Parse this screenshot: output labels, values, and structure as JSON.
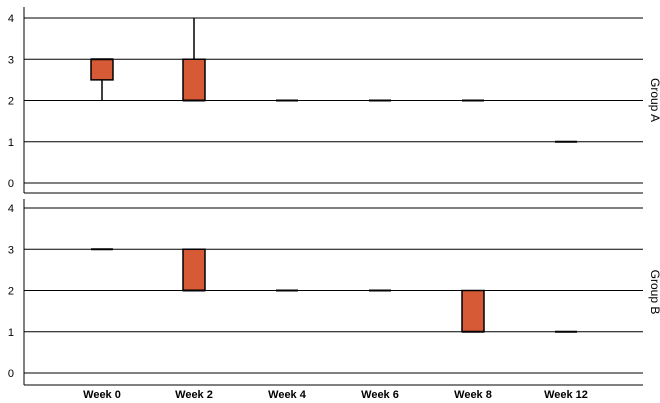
{
  "chart_data": {
    "type": "box",
    "categories": [
      "Week 0",
      "Week 2",
      "Week 4",
      "Week 6",
      "Week 8",
      "Week 12"
    ],
    "ylim": [
      0,
      4
    ],
    "yticks": [
      0,
      1,
      2,
      3,
      4
    ],
    "grid": true,
    "colors": {
      "box": "#d65a36",
      "outline": "#000000",
      "grid": "#000000"
    },
    "panels": [
      {
        "label": "Group A",
        "boxes": [
          {
            "min": 2,
            "q1": 2.5,
            "median": 3,
            "q3": 3,
            "max": 3
          },
          {
            "min": 2,
            "q1": 2,
            "median": 2,
            "q3": 3,
            "max": 4
          },
          {
            "min": 2,
            "q1": 2,
            "median": 2,
            "q3": 2,
            "max": 2
          },
          {
            "min": 2,
            "q1": 2,
            "median": 2,
            "q3": 2,
            "max": 2
          },
          {
            "min": 2,
            "q1": 2,
            "median": 2,
            "q3": 2,
            "max": 2
          },
          {
            "min": 1,
            "q1": 1,
            "median": 1,
            "q3": 1,
            "max": 1
          }
        ]
      },
      {
        "label": "Group B",
        "boxes": [
          {
            "min": 3,
            "q1": 3,
            "median": 3,
            "q3": 3,
            "max": 3
          },
          {
            "min": 2,
            "q1": 2,
            "median": 2,
            "q3": 3,
            "max": 3
          },
          {
            "min": 2,
            "q1": 2,
            "median": 2,
            "q3": 2,
            "max": 2
          },
          {
            "min": 2,
            "q1": 2,
            "median": 2,
            "q3": 2,
            "max": 2
          },
          {
            "min": 1,
            "q1": 1,
            "median": 1,
            "q3": 2,
            "max": 2
          },
          {
            "min": 1,
            "q1": 1,
            "median": 1,
            "q3": 1,
            "max": 1
          }
        ]
      }
    ]
  }
}
